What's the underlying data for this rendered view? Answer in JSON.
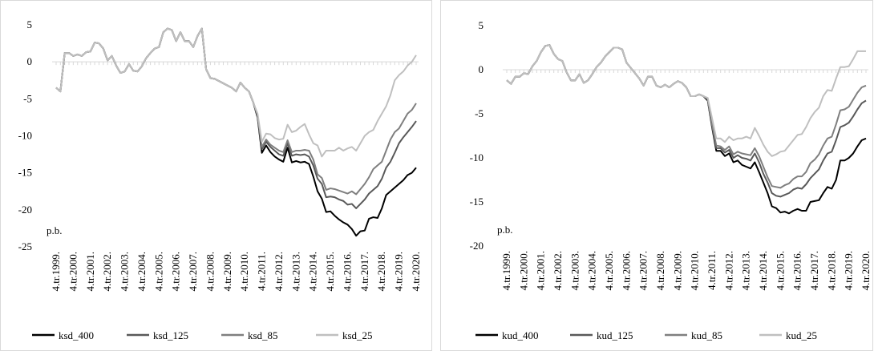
{
  "chart_data": [
    {
      "type": "line",
      "annotation": "p.b.",
      "categories": [
        "4.tr.1999.",
        null,
        null,
        null,
        "4.tr.2000.",
        null,
        null,
        null,
        "4.tr.2001.",
        null,
        null,
        null,
        "4.tr.2002.",
        null,
        null,
        null,
        "4.tr.2003.",
        null,
        null,
        null,
        "4.tr.2004.",
        null,
        null,
        null,
        "4.tr.2005.",
        null,
        null,
        null,
        "4.tr.2006.",
        null,
        null,
        null,
        "4.tr.2007.",
        null,
        null,
        null,
        "4.tr.2008.",
        null,
        null,
        null,
        "4.tr.2009.",
        null,
        null,
        null,
        "4.tr.2010.",
        null,
        null,
        null,
        "4.tr.2011.",
        null,
        null,
        null,
        "4.tr.2012.",
        null,
        null,
        null,
        "4.tr.2013.",
        null,
        null,
        null,
        "4.tr.2014.",
        null,
        null,
        null,
        "4.tr.2015.",
        null,
        null,
        null,
        "4.tr.2016.",
        null,
        null,
        null,
        "4.tr.2017.",
        null,
        null,
        null,
        "4.tr.2018.",
        null,
        null,
        null,
        "4.tr.2019.",
        null,
        null,
        null,
        "4.tr.2020."
      ],
      "ylim": [
        -25,
        5
      ],
      "yticks": [
        -25,
        -20,
        -15,
        -10,
        -5,
        0,
        5
      ],
      "series": [
        {
          "name": "ksd_400",
          "color": "#000000",
          "values": [
            -3.5,
            -4,
            1.2,
            1.2,
            0.8,
            1.0,
            0.8,
            1.3,
            1.4,
            2.6,
            2.5,
            1.8,
            0.2,
            0.8,
            -0.5,
            -1.5,
            -1.3,
            -0.3,
            -1.2,
            -1.3,
            -0.6,
            0.5,
            1.2,
            1.8,
            2.0,
            4.0,
            4.5,
            4.3,
            2.8,
            4.0,
            2.8,
            2.8,
            2.0,
            3.5,
            4.5,
            -1.0,
            -2.2,
            -2.3,
            -2.6,
            -2.9,
            -3.2,
            -3.5,
            -4.0,
            -2.8,
            -3.5,
            -4.0,
            -5.5,
            -7.5,
            -12.3,
            -11.3,
            -12.2,
            -12.8,
            -13.2,
            -13.5,
            -11.6,
            -13.6,
            -13.4,
            -13.6,
            -13.5,
            -13.8,
            -15.5,
            -17.5,
            -18.5,
            -20.3,
            -20.2,
            -20.8,
            -21.3,
            -21.7,
            -22.0,
            -22.6,
            -23.5,
            -22.9,
            -22.8,
            -21.2,
            -21.0,
            -21.1,
            -19.8,
            -18.0,
            -17.5,
            -17.0,
            -16.5,
            -16.0,
            -15.3,
            -15.0,
            -14.3
          ]
        },
        {
          "name": "ksd_125",
          "color": "#595959",
          "values": [
            -3.5,
            -4,
            1.2,
            1.2,
            0.8,
            1.0,
            0.8,
            1.3,
            1.4,
            2.6,
            2.5,
            1.8,
            0.2,
            0.8,
            -0.5,
            -1.5,
            -1.3,
            -0.3,
            -1.2,
            -1.3,
            -0.6,
            0.5,
            1.2,
            1.8,
            2.0,
            4.0,
            4.5,
            4.3,
            2.8,
            4.0,
            2.8,
            2.8,
            2.0,
            3.5,
            4.5,
            -1.0,
            -2.2,
            -2.3,
            -2.6,
            -2.9,
            -3.2,
            -3.5,
            -4.0,
            -2.8,
            -3.5,
            -4.0,
            -5.5,
            -7.3,
            -11.8,
            -10.8,
            -11.5,
            -12.0,
            -12.5,
            -12.7,
            -11.0,
            -12.7,
            -12.5,
            -12.6,
            -12.5,
            -12.8,
            -14.0,
            -15.8,
            -16.5,
            -18.3,
            -18.2,
            -18.3,
            -18.6,
            -18.8,
            -19.3,
            -19.2,
            -19.8,
            -19.2,
            -18.6,
            -17.8,
            -17.3,
            -16.8,
            -15.8,
            -14.3,
            -13.5,
            -12.3,
            -11.0,
            -10.2,
            -9.5,
            -8.8,
            -8.0
          ]
        },
        {
          "name": "ksd_85",
          "color": "#7f7f7f",
          "values": [
            -3.5,
            -4,
            1.2,
            1.2,
            0.8,
            1.0,
            0.8,
            1.3,
            1.4,
            2.6,
            2.5,
            1.8,
            0.2,
            0.8,
            -0.5,
            -1.5,
            -1.3,
            -0.3,
            -1.2,
            -1.3,
            -0.6,
            0.5,
            1.2,
            1.8,
            2.0,
            4.0,
            4.5,
            4.3,
            2.8,
            4.0,
            2.8,
            2.8,
            2.0,
            3.5,
            4.5,
            -1.0,
            -2.2,
            -2.3,
            -2.6,
            -2.9,
            -3.2,
            -3.5,
            -4.0,
            -2.8,
            -3.5,
            -4.0,
            -5.5,
            -7.2,
            -11.5,
            -10.5,
            -11.2,
            -11.6,
            -12.0,
            -12.2,
            -10.6,
            -12.2,
            -12.0,
            -12.0,
            -11.9,
            -12.0,
            -13.2,
            -15.2,
            -15.7,
            -17.3,
            -17.1,
            -17.2,
            -17.4,
            -17.6,
            -17.8,
            -17.5,
            -17.9,
            -17.2,
            -16.5,
            -15.6,
            -14.5,
            -14.0,
            -13.5,
            -12.0,
            -10.5,
            -9.5,
            -9.0,
            -8.0,
            -7.0,
            -6.5,
            -5.6
          ]
        },
        {
          "name": "ksd_25",
          "color": "#bfbfbf",
          "values": [
            -3.5,
            -4,
            1.2,
            1.2,
            0.8,
            1.0,
            0.8,
            1.3,
            1.4,
            2.6,
            2.5,
            1.8,
            0.2,
            0.8,
            -0.5,
            -1.5,
            -1.3,
            -0.3,
            -1.2,
            -1.3,
            -0.6,
            0.5,
            1.2,
            1.8,
            2.0,
            4.0,
            4.5,
            4.3,
            2.8,
            4.0,
            2.8,
            2.8,
            2.0,
            3.5,
            4.5,
            -1.0,
            -2.2,
            -2.3,
            -2.6,
            -2.9,
            -3.2,
            -3.5,
            -4.0,
            -2.8,
            -3.5,
            -4.0,
            -5.5,
            -7.0,
            -10.8,
            -9.7,
            -9.8,
            -10.3,
            -10.5,
            -10.4,
            -8.5,
            -9.5,
            -9.3,
            -8.8,
            -8.4,
            -9.8,
            -11.0,
            -11.3,
            -12.8,
            -12.0,
            -12.0,
            -12.0,
            -11.6,
            -12.0,
            -11.7,
            -11.5,
            -12.0,
            -11.0,
            -10.0,
            -9.5,
            -9.2,
            -8.0,
            -7.0,
            -6.0,
            -4.5,
            -2.5,
            -1.8,
            -1.3,
            -0.5,
            0.0,
            0.9
          ]
        }
      ]
    },
    {
      "type": "line",
      "annotation": "p.b.",
      "categories": [
        "4.tr.1999.",
        null,
        null,
        null,
        "4.tr.2000.",
        null,
        null,
        null,
        "4.tr.2001.",
        null,
        null,
        null,
        "4.tr.2002.",
        null,
        null,
        null,
        "4.tr.2003.",
        null,
        null,
        null,
        "4.tr.2004.",
        null,
        null,
        null,
        "4.tr.2005.",
        null,
        null,
        null,
        "4.tr.2006.",
        null,
        null,
        null,
        "4.tr.2007.",
        null,
        null,
        null,
        "4.tr.2008.",
        null,
        null,
        null,
        "4.tr.2009.",
        null,
        null,
        null,
        "4.tr.2010.",
        null,
        null,
        null,
        "4.tr.2011.",
        null,
        null,
        null,
        "4.tr.2012.",
        null,
        null,
        null,
        "4.tr.2013.",
        null,
        null,
        null,
        "4.tr.2014.",
        null,
        null,
        null,
        "4.tr.2015.",
        null,
        null,
        null,
        "4.tr.2016.",
        null,
        null,
        null,
        "4.tr.2017.",
        null,
        null,
        null,
        "4.tr.2018.",
        null,
        null,
        null,
        "4.tr.2019.",
        null,
        null,
        null,
        "4.tr.2020."
      ],
      "ylim": [
        -20,
        5
      ],
      "yticks": [
        -20,
        -15,
        -10,
        -5,
        0,
        5
      ],
      "series": [
        {
          "name": "kud_400",
          "color": "#000000",
          "values": [
            -1.2,
            -1.6,
            -0.8,
            -0.8,
            -0.4,
            -0.5,
            0.4,
            1.0,
            2.0,
            2.7,
            2.8,
            1.8,
            1.2,
            1.0,
            -0.3,
            -1.2,
            -1.2,
            -0.5,
            -1.5,
            -1.2,
            -0.5,
            0.3,
            0.8,
            1.5,
            2.0,
            2.5,
            2.5,
            2.3,
            0.8,
            0.2,
            -0.4,
            -1.0,
            -1.8,
            -0.8,
            -0.8,
            -1.8,
            -2.0,
            -1.7,
            -2.0,
            -1.6,
            -1.3,
            -1.5,
            -2.0,
            -3.0,
            -3.0,
            -2.8,
            -3.0,
            -3.5,
            -6.5,
            -9.2,
            -9.2,
            -9.8,
            -9.5,
            -10.5,
            -10.3,
            -10.8,
            -11.0,
            -11.2,
            -10.5,
            -11.6,
            -12.8,
            -14.0,
            -15.5,
            -15.7,
            -16.2,
            -16.1,
            -16.3,
            -16.0,
            -15.8,
            -16.0,
            -16.0,
            -15.0,
            -14.9,
            -14.8,
            -14.0,
            -13.3,
            -13.5,
            -12.5,
            -10.3,
            -10.3,
            -10.0,
            -9.5,
            -8.7,
            -8.0,
            -7.8
          ]
        },
        {
          "name": "kud_125",
          "color": "#595959",
          "values": [
            -1.2,
            -1.6,
            -0.8,
            -0.8,
            -0.4,
            -0.5,
            0.4,
            1.0,
            2.0,
            2.7,
            2.8,
            1.8,
            1.2,
            1.0,
            -0.3,
            -1.2,
            -1.2,
            -0.5,
            -1.5,
            -1.2,
            -0.5,
            0.3,
            0.8,
            1.5,
            2.0,
            2.5,
            2.5,
            2.3,
            0.8,
            0.2,
            -0.4,
            -1.0,
            -1.8,
            -0.8,
            -0.8,
            -1.8,
            -2.0,
            -1.7,
            -2.0,
            -1.6,
            -1.3,
            -1.5,
            -2.0,
            -3.0,
            -3.0,
            -2.8,
            -3.0,
            -3.4,
            -6.3,
            -8.9,
            -8.9,
            -9.4,
            -9.1,
            -10.0,
            -9.7,
            -10.0,
            -10.1,
            -10.3,
            -9.5,
            -10.5,
            -11.8,
            -12.8,
            -14.0,
            -14.3,
            -14.4,
            -14.2,
            -14.0,
            -13.6,
            -13.4,
            -13.5,
            -13.0,
            -12.3,
            -11.8,
            -11.3,
            -10.3,
            -9.5,
            -9.3,
            -8.0,
            -6.5,
            -6.3,
            -6.0,
            -5.3,
            -4.5,
            -3.8,
            -3.5
          ]
        },
        {
          "name": "kud_85",
          "color": "#7f7f7f",
          "values": [
            -1.2,
            -1.6,
            -0.8,
            -0.8,
            -0.4,
            -0.5,
            0.4,
            1.0,
            2.0,
            2.7,
            2.8,
            1.8,
            1.2,
            1.0,
            -0.3,
            -1.2,
            -1.2,
            -0.5,
            -1.5,
            -1.2,
            -0.5,
            0.3,
            0.8,
            1.5,
            2.0,
            2.5,
            2.5,
            2.3,
            0.8,
            0.2,
            -0.4,
            -1.0,
            -1.8,
            -0.8,
            -0.8,
            -1.8,
            -2.0,
            -1.7,
            -2.0,
            -1.6,
            -1.3,
            -1.5,
            -2.0,
            -3.0,
            -3.0,
            -2.8,
            -3.0,
            -3.3,
            -6.2,
            -8.6,
            -8.7,
            -9.1,
            -8.7,
            -9.6,
            -9.3,
            -9.5,
            -9.6,
            -9.7,
            -8.9,
            -9.8,
            -11.0,
            -12.2,
            -13.2,
            -13.3,
            -13.4,
            -13.1,
            -12.9,
            -12.4,
            -12.1,
            -12.1,
            -11.6,
            -10.6,
            -10.2,
            -9.6,
            -8.6,
            -7.8,
            -7.6,
            -6.2,
            -4.6,
            -4.5,
            -4.2,
            -3.4,
            -2.6,
            -2.0,
            -1.8
          ]
        },
        {
          "name": "kud_25",
          "color": "#bfbfbf",
          "values": [
            -1.2,
            -1.6,
            -0.8,
            -0.8,
            -0.4,
            -0.5,
            0.4,
            1.0,
            2.0,
            2.7,
            2.8,
            1.8,
            1.2,
            1.0,
            -0.3,
            -1.2,
            -1.2,
            -0.5,
            -1.5,
            -1.2,
            -0.5,
            0.3,
            0.8,
            1.5,
            2.0,
            2.5,
            2.5,
            2.3,
            0.8,
            0.2,
            -0.4,
            -1.0,
            -1.8,
            -0.8,
            -0.8,
            -1.8,
            -2.0,
            -1.7,
            -2.0,
            -1.6,
            -1.3,
            -1.5,
            -2.0,
            -3.0,
            -3.0,
            -2.8,
            -3.0,
            -3.2,
            -5.5,
            -7.8,
            -7.8,
            -8.2,
            -7.6,
            -8.0,
            -7.8,
            -7.8,
            -7.6,
            -7.8,
            -6.6,
            -7.5,
            -8.5,
            -9.3,
            -9.8,
            -9.6,
            -9.3,
            -9.2,
            -8.6,
            -8.0,
            -7.4,
            -7.3,
            -6.5,
            -5.5,
            -4.8,
            -4.3,
            -3.0,
            -2.3,
            -2.4,
            -1.0,
            0.3,
            0.3,
            0.4,
            1.2,
            2.1,
            2.1,
            2.1
          ]
        }
      ]
    }
  ]
}
